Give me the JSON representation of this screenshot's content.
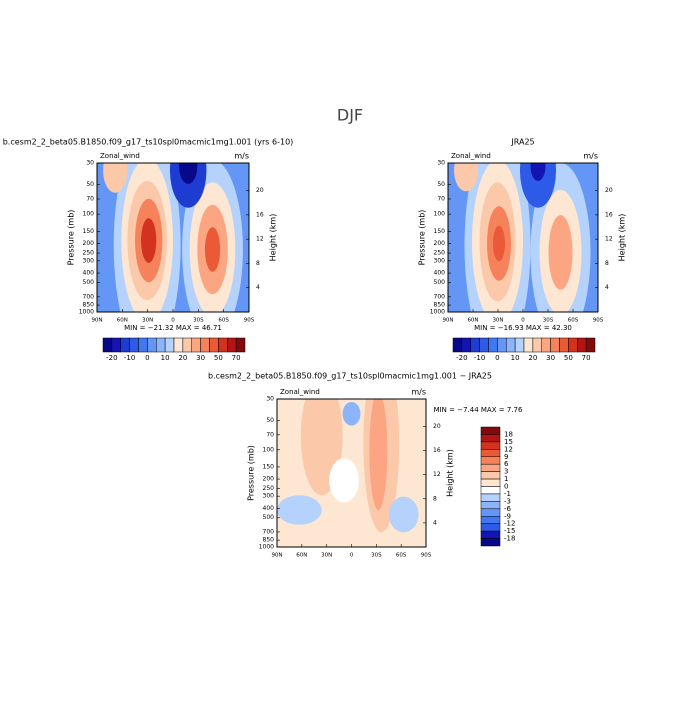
{
  "title": "DJF",
  "panels": [
    {
      "title": "b.cesm2_2_beta05.B1850.f09_g17_ts10spl0macmic1mg1.001 (yrs 6-10)",
      "variable": "Zonal_wind",
      "units": "m/s",
      "y_label": "Pressure (mb)",
      "y2_label": "Height (km)",
      "pressure_ticks": [
        30,
        50,
        70,
        100,
        150,
        200,
        250,
        300,
        400,
        500,
        700,
        850,
        1000
      ],
      "height_ticks": [
        20,
        16,
        12,
        8,
        4
      ],
      "lat_ticks": [
        "90N",
        "60N",
        "30N",
        "0",
        "30S",
        "60S",
        "90S"
      ],
      "stats": "MIN =  −21.32   MAX =   46.71",
      "colorbar": {
        "labels": [
          -20,
          -10,
          0,
          10,
          20,
          30,
          50,
          70
        ],
        "colors": [
          "#08088a",
          "#1414b4",
          "#1e3cd2",
          "#2d5ae6",
          "#4178f0",
          "#6496f5",
          "#8cb4fa",
          "#b4d2fc",
          "#fde6d2",
          "#fcc8aa",
          "#fba582",
          "#f5825a",
          "#eb5a37",
          "#d2321e",
          "#b41414",
          "#820a0a"
        ]
      }
    },
    {
      "title": "JRA25",
      "variable": "Zonal_wind",
      "units": "m/s",
      "y_label": "Pressure (mb)",
      "y2_label": "Height (km)",
      "pressure_ticks": [
        30,
        50,
        70,
        100,
        150,
        200,
        250,
        300,
        400,
        500,
        700,
        850,
        1000
      ],
      "height_ticks": [
        20,
        16,
        12,
        8,
        4
      ],
      "lat_ticks": [
        "90N",
        "60N",
        "30N",
        "0",
        "30S",
        "60S",
        "90S"
      ],
      "stats": "MIN =  −16.93   MAX =   42.30",
      "colorbar": {
        "labels": [
          -20,
          -10,
          0,
          10,
          20,
          30,
          50,
          70
        ],
        "colors": [
          "#08088a",
          "#1414b4",
          "#1e3cd2",
          "#2d5ae6",
          "#4178f0",
          "#6496f5",
          "#8cb4fa",
          "#b4d2fc",
          "#fde6d2",
          "#fcc8aa",
          "#fba582",
          "#f5825a",
          "#eb5a37",
          "#d2321e",
          "#b41414",
          "#820a0a"
        ]
      }
    },
    {
      "title": "b.cesm2_2_beta05.B1850.f09_g17_ts10spl0macmic1mg1.001 − JRA25",
      "variable": "Zonal_wind",
      "units": "m/s",
      "y_label": "Pressure (mb)",
      "y2_label": "Height (km)",
      "pressure_ticks": [
        30,
        50,
        70,
        100,
        150,
        200,
        250,
        300,
        400,
        500,
        700,
        850,
        1000
      ],
      "height_ticks": [
        20,
        16,
        12,
        8,
        4
      ],
      "lat_ticks": [
        "90N",
        "60N",
        "30N",
        "0",
        "30S",
        "60S",
        "90S"
      ],
      "stats": "MIN =   −7.44   MAX =    7.76",
      "colorbar": {
        "labels": [
          18,
          15,
          12,
          9,
          6,
          3,
          1,
          0,
          -1,
          -3,
          -6,
          -9,
          -12,
          -15,
          -18
        ],
        "colors": [
          "#820a0a",
          "#b41414",
          "#d2321e",
          "#eb5a37",
          "#f5825a",
          "#fba582",
          "#fcc8aa",
          "#fde6d2",
          "#ffffff",
          "#b4d2fc",
          "#8cb4fa",
          "#6496f5",
          "#4178f0",
          "#2d5ae6",
          "#1414b4",
          "#08088a"
        ]
      }
    }
  ]
}
